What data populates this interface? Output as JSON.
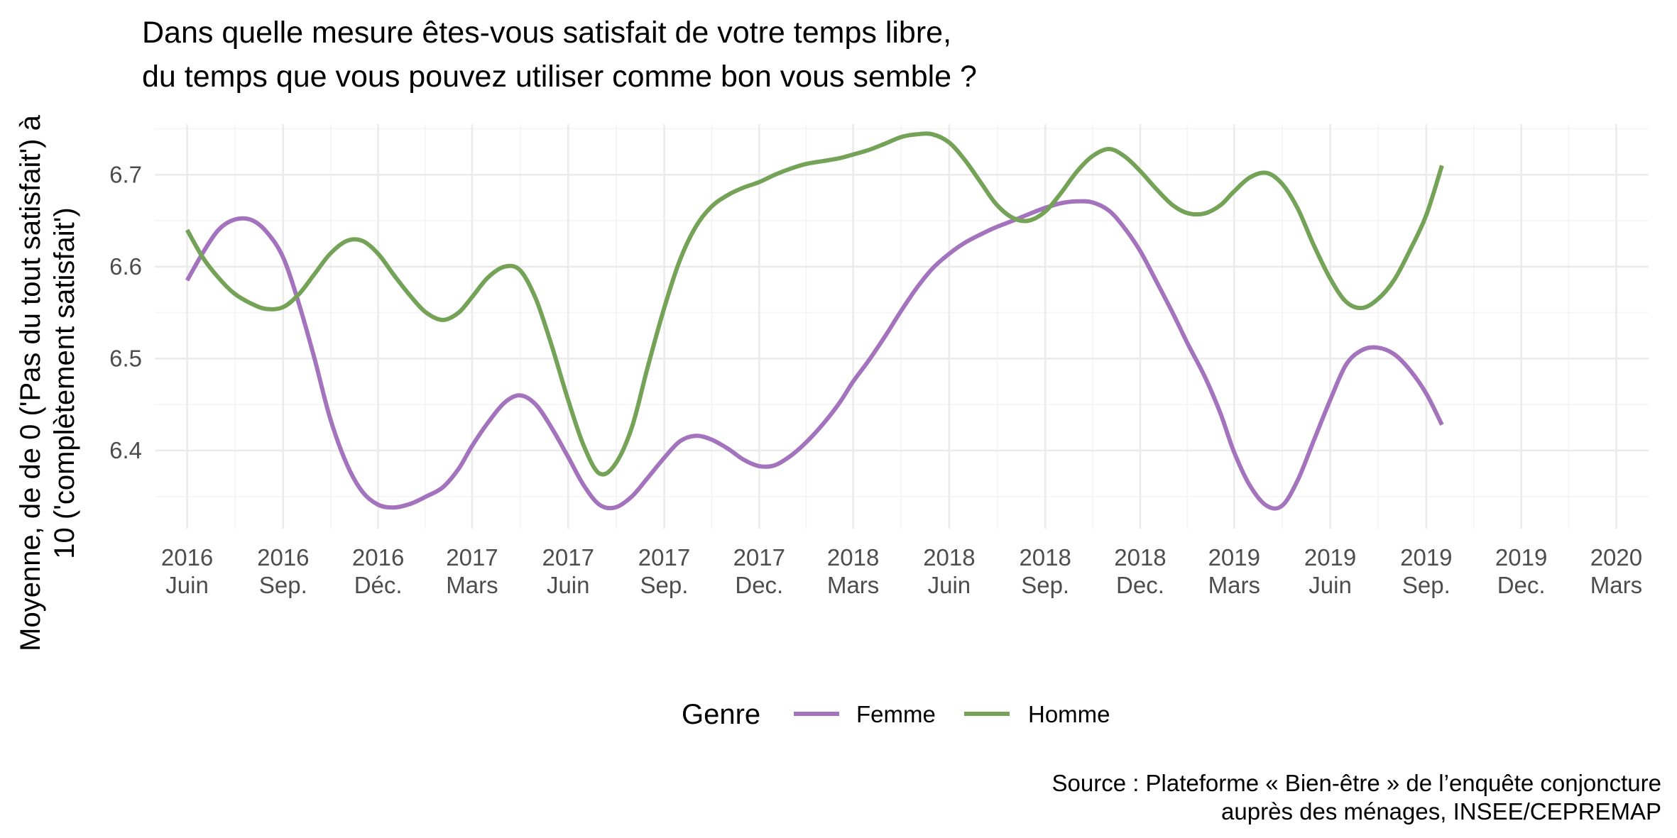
{
  "chart_data": {
    "type": "line",
    "title": [
      "Dans quelle mesure êtes-vous satisfait de votre temps libre,",
      "du temps que vous pouvez utiliser comme bon vous semble ?"
    ],
    "ylabel": [
      "Moyenne, de de 0 ('Pas du tout satisfait') à",
      "10 ('complètement satisfait')"
    ],
    "xlabel": "",
    "ylim": [
      6.315,
      6.755
    ],
    "yticks": [
      6.4,
      6.5,
      6.6,
      6.7
    ],
    "ytick_labels": [
      "6.4",
      "6.5",
      "6.6",
      "6.7"
    ],
    "x_range": [
      "2016-05",
      "2020-04"
    ],
    "xticks": [
      {
        "x": "2016-06",
        "line1": "2016",
        "line2": "Juin"
      },
      {
        "x": "2016-09",
        "line1": "2016",
        "line2": "Sep."
      },
      {
        "x": "2016-12",
        "line1": "2016",
        "line2": "Déc."
      },
      {
        "x": "2017-03",
        "line1": "2017",
        "line2": "Mars"
      },
      {
        "x": "2017-06",
        "line1": "2017",
        "line2": "Juin"
      },
      {
        "x": "2017-09",
        "line1": "2017",
        "line2": "Sep."
      },
      {
        "x": "2017-12",
        "line1": "2017",
        "line2": "Dec."
      },
      {
        "x": "2018-03",
        "line1": "2018",
        "line2": "Mars"
      },
      {
        "x": "2018-06",
        "line1": "2018",
        "line2": "Juin"
      },
      {
        "x": "2018-09",
        "line1": "2018",
        "line2": "Sep."
      },
      {
        "x": "2018-12",
        "line1": "2018",
        "line2": "Dec."
      },
      {
        "x": "2019-03",
        "line1": "2019",
        "line2": "Mars"
      },
      {
        "x": "2019-06",
        "line1": "2019",
        "line2": "Juin"
      },
      {
        "x": "2019-09",
        "line1": "2019",
        "line2": "Sep."
      },
      {
        "x": "2019-12",
        "line1": "2019",
        "line2": "Dec."
      },
      {
        "x": "2020-03",
        "line1": "2020",
        "line2": "Mars"
      }
    ],
    "grid": true,
    "legend": {
      "title": "Genre",
      "position": "bottom"
    },
    "series": [
      {
        "name": "Femme",
        "color": "#a374bd",
        "points": [
          [
            "2016-06-01",
            6.585
          ],
          [
            "2016-06-16",
            6.615
          ],
          [
            "2016-07-01",
            6.64
          ],
          [
            "2016-07-16",
            6.651
          ],
          [
            "2016-08-01",
            6.651
          ],
          [
            "2016-08-16",
            6.638
          ],
          [
            "2016-09-01",
            6.61
          ],
          [
            "2016-09-16",
            6.56
          ],
          [
            "2016-10-01",
            6.5
          ],
          [
            "2016-10-16",
            6.435
          ],
          [
            "2016-11-01",
            6.385
          ],
          [
            "2016-11-16",
            6.355
          ],
          [
            "2016-12-01",
            6.341
          ],
          [
            "2016-12-16",
            6.338
          ],
          [
            "2017-01-01",
            6.342
          ],
          [
            "2017-01-16",
            6.35
          ],
          [
            "2017-02-01",
            6.36
          ],
          [
            "2017-02-16",
            6.38
          ],
          [
            "2017-03-01",
            6.405
          ],
          [
            "2017-03-16",
            6.43
          ],
          [
            "2017-04-01",
            6.452
          ],
          [
            "2017-04-16",
            6.46
          ],
          [
            "2017-05-01",
            6.45
          ],
          [
            "2017-05-16",
            6.425
          ],
          [
            "2017-06-01",
            6.393
          ],
          [
            "2017-06-16",
            6.362
          ],
          [
            "2017-07-01",
            6.341
          ],
          [
            "2017-07-16",
            6.338
          ],
          [
            "2017-08-01",
            6.35
          ],
          [
            "2017-08-16",
            6.37
          ],
          [
            "2017-09-01",
            6.392
          ],
          [
            "2017-09-16",
            6.41
          ],
          [
            "2017-10-01",
            6.416
          ],
          [
            "2017-10-16",
            6.412
          ],
          [
            "2017-11-01",
            6.402
          ],
          [
            "2017-11-16",
            6.39
          ],
          [
            "2017-12-01",
            6.383
          ],
          [
            "2017-12-16",
            6.384
          ],
          [
            "2018-01-01",
            6.395
          ],
          [
            "2018-01-16",
            6.41
          ],
          [
            "2018-02-01",
            6.43
          ],
          [
            "2018-02-16",
            6.452
          ],
          [
            "2018-03-01",
            6.475
          ],
          [
            "2018-03-16",
            6.498
          ],
          [
            "2018-04-01",
            6.525
          ],
          [
            "2018-04-16",
            6.552
          ],
          [
            "2018-05-01",
            6.577
          ],
          [
            "2018-05-16",
            6.598
          ],
          [
            "2018-06-01",
            6.614
          ],
          [
            "2018-06-16",
            6.626
          ],
          [
            "2018-07-01",
            6.635
          ],
          [
            "2018-07-16",
            6.643
          ],
          [
            "2018-08-01",
            6.65
          ],
          [
            "2018-08-16",
            6.657
          ],
          [
            "2018-09-01",
            6.664
          ],
          [
            "2018-09-16",
            6.669
          ],
          [
            "2018-10-01",
            6.671
          ],
          [
            "2018-10-16",
            6.67
          ],
          [
            "2018-11-01",
            6.661
          ],
          [
            "2018-11-16",
            6.642
          ],
          [
            "2018-12-01",
            6.617
          ],
          [
            "2018-12-16",
            6.585
          ],
          [
            "2019-01-01",
            6.55
          ],
          [
            "2019-01-16",
            6.515
          ],
          [
            "2019-02-01",
            6.48
          ],
          [
            "2019-02-16",
            6.44
          ],
          [
            "2019-03-01",
            6.398
          ],
          [
            "2019-03-16",
            6.362
          ],
          [
            "2019-04-01",
            6.34
          ],
          [
            "2019-04-16",
            6.34
          ],
          [
            "2019-05-01",
            6.368
          ],
          [
            "2019-05-16",
            6.41
          ],
          [
            "2019-06-01",
            6.455
          ],
          [
            "2019-06-16",
            6.493
          ],
          [
            "2019-07-01",
            6.509
          ],
          [
            "2019-07-16",
            6.512
          ],
          [
            "2019-08-01",
            6.505
          ],
          [
            "2019-08-16",
            6.488
          ],
          [
            "2019-09-01",
            6.462
          ],
          [
            "2019-09-16",
            6.428
          ]
        ]
      },
      {
        "name": "Homme",
        "color": "#74a357",
        "points": [
          [
            "2016-06-01",
            6.64
          ],
          [
            "2016-06-16",
            6.61
          ],
          [
            "2016-07-01",
            6.588
          ],
          [
            "2016-07-16",
            6.571
          ],
          [
            "2016-08-01",
            6.56
          ],
          [
            "2016-08-16",
            6.554
          ],
          [
            "2016-09-01",
            6.556
          ],
          [
            "2016-09-16",
            6.57
          ],
          [
            "2016-10-01",
            6.592
          ],
          [
            "2016-10-16",
            6.614
          ],
          [
            "2016-11-01",
            6.628
          ],
          [
            "2016-11-16",
            6.628
          ],
          [
            "2016-12-01",
            6.614
          ],
          [
            "2016-12-16",
            6.591
          ],
          [
            "2017-01-01",
            6.568
          ],
          [
            "2017-01-16",
            6.55
          ],
          [
            "2017-02-01",
            6.542
          ],
          [
            "2017-02-16",
            6.55
          ],
          [
            "2017-03-01",
            6.567
          ],
          [
            "2017-03-16",
            6.588
          ],
          [
            "2017-04-01",
            6.6
          ],
          [
            "2017-04-16",
            6.596
          ],
          [
            "2017-05-01",
            6.565
          ],
          [
            "2017-05-16",
            6.515
          ],
          [
            "2017-06-01",
            6.455
          ],
          [
            "2017-06-16",
            6.405
          ],
          [
            "2017-07-01",
            6.375
          ],
          [
            "2017-07-16",
            6.385
          ],
          [
            "2017-08-01",
            6.425
          ],
          [
            "2017-08-16",
            6.49
          ],
          [
            "2017-09-01",
            6.555
          ],
          [
            "2017-09-16",
            6.607
          ],
          [
            "2017-10-01",
            6.643
          ],
          [
            "2017-10-16",
            6.665
          ],
          [
            "2017-11-01",
            6.678
          ],
          [
            "2017-11-16",
            6.686
          ],
          [
            "2017-12-01",
            6.692
          ],
          [
            "2017-12-16",
            6.7
          ],
          [
            "2018-01-01",
            6.707
          ],
          [
            "2018-01-16",
            6.712
          ],
          [
            "2018-02-01",
            6.715
          ],
          [
            "2018-02-16",
            6.718
          ],
          [
            "2018-03-01",
            6.722
          ],
          [
            "2018-03-16",
            6.727
          ],
          [
            "2018-04-01",
            6.734
          ],
          [
            "2018-04-16",
            6.741
          ],
          [
            "2018-05-01",
            6.744
          ],
          [
            "2018-05-16",
            6.744
          ],
          [
            "2018-06-01",
            6.735
          ],
          [
            "2018-06-16",
            6.716
          ],
          [
            "2018-07-01",
            6.692
          ],
          [
            "2018-07-16",
            6.668
          ],
          [
            "2018-08-01",
            6.653
          ],
          [
            "2018-08-16",
            6.65
          ],
          [
            "2018-09-01",
            6.66
          ],
          [
            "2018-09-16",
            6.68
          ],
          [
            "2018-10-01",
            6.703
          ],
          [
            "2018-10-16",
            6.72
          ],
          [
            "2018-11-01",
            6.728
          ],
          [
            "2018-11-16",
            6.72
          ],
          [
            "2018-12-01",
            6.704
          ],
          [
            "2018-12-16",
            6.685
          ],
          [
            "2019-01-01",
            6.667
          ],
          [
            "2019-01-16",
            6.658
          ],
          [
            "2019-02-01",
            6.658
          ],
          [
            "2019-02-16",
            6.667
          ],
          [
            "2019-03-01",
            6.682
          ],
          [
            "2019-03-16",
            6.697
          ],
          [
            "2019-04-01",
            6.702
          ],
          [
            "2019-04-16",
            6.69
          ],
          [
            "2019-05-01",
            6.663
          ],
          [
            "2019-05-16",
            6.624
          ],
          [
            "2019-06-01",
            6.587
          ],
          [
            "2019-06-16",
            6.562
          ],
          [
            "2019-07-01",
            6.555
          ],
          [
            "2019-07-16",
            6.564
          ],
          [
            "2019-08-01",
            6.585
          ],
          [
            "2019-08-16",
            6.617
          ],
          [
            "2019-09-01",
            6.656
          ],
          [
            "2019-09-16",
            6.71
          ]
        ]
      }
    ],
    "caption": [
      "Source : Plateforme « Bien-être » de l’enquête conjoncture",
      "auprès des ménages, INSEE/CEPREMAP"
    ]
  }
}
